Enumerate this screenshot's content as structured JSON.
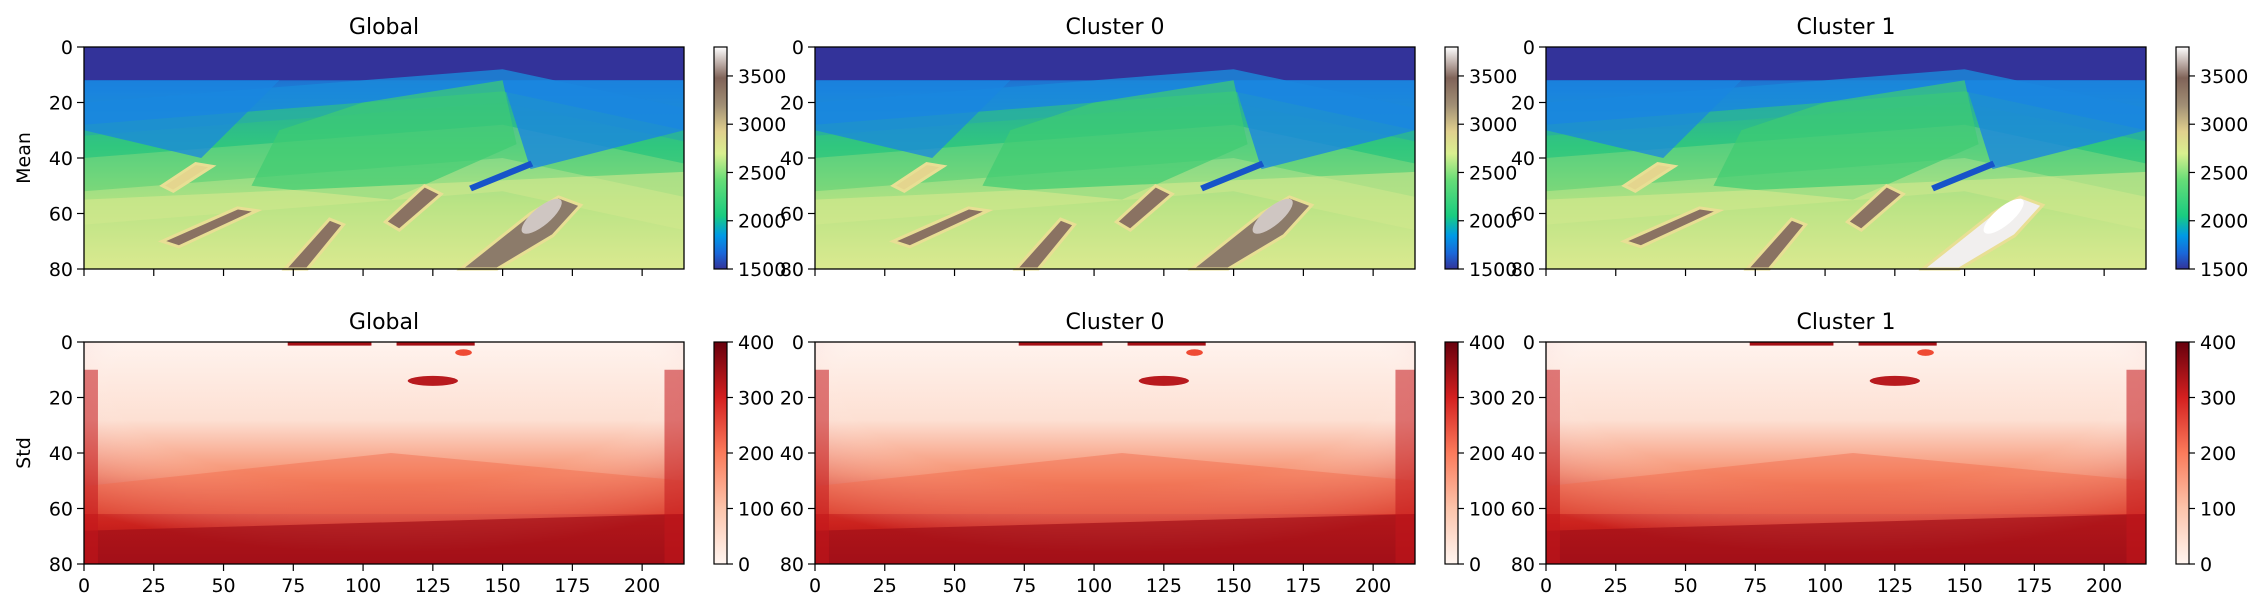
{
  "figure": {
    "row_labels": [
      "Mean",
      "Std"
    ],
    "titles": {
      "top": [
        "Global",
        "Cluster 0",
        "Cluster 1"
      ],
      "bottom": [
        "Global",
        "Cluster 0",
        "Cluster 1"
      ]
    }
  },
  "chart_data": [
    {
      "type": "heatmap",
      "title": "Global",
      "ylabel": "Mean",
      "xlim": [
        0,
        215
      ],
      "ylim": [
        80,
        0
      ],
      "colormap": "terrain",
      "colorbar": {
        "range": [
          1500,
          3800
        ],
        "ticks": [
          1500,
          2000,
          2500,
          3000,
          3500
        ]
      },
      "description_values": "seismic velocity model mean, low ~1500 in top water layer, layered ~2000-2800, high-velocity bodies up to ~3600"
    },
    {
      "type": "heatmap",
      "title": "Cluster 0",
      "xlim": [
        0,
        215
      ],
      "ylim": [
        80,
        0
      ],
      "colormap": "terrain",
      "colorbar": {
        "range": [
          1500,
          3800
        ],
        "ticks": [
          1500,
          2000,
          2500,
          3000,
          3500
        ]
      }
    },
    {
      "type": "heatmap",
      "title": "Cluster 1",
      "xlim": [
        0,
        215
      ],
      "ylim": [
        80,
        0
      ],
      "colormap": "terrain",
      "colorbar": {
        "range": [
          1500,
          3800
        ],
        "ticks": [
          1500,
          2000,
          2500,
          3000,
          3500
        ]
      }
    },
    {
      "type": "heatmap",
      "title": "Global",
      "ylabel": "Std",
      "xlim": [
        0,
        215
      ],
      "ylim": [
        80,
        0
      ],
      "colormap": "Reds",
      "colorbar": {
        "range": [
          0,
          400
        ],
        "ticks": [
          0,
          100,
          200,
          300,
          400
        ]
      }
    },
    {
      "type": "heatmap",
      "title": "Cluster 0",
      "xlim": [
        0,
        215
      ],
      "ylim": [
        80,
        0
      ],
      "colormap": "Reds",
      "colorbar": {
        "range": [
          0,
          400
        ],
        "ticks": [
          0,
          100,
          200,
          300,
          400
        ]
      }
    },
    {
      "type": "heatmap",
      "title": "Cluster 1",
      "xlim": [
        0,
        215
      ],
      "ylim": [
        80,
        0
      ],
      "colormap": "Reds",
      "colorbar": {
        "range": [
          0,
          400
        ],
        "ticks": [
          0,
          100,
          200,
          300,
          400
        ]
      }
    }
  ],
  "axes": {
    "x_ticks": [
      0,
      25,
      50,
      75,
      100,
      125,
      150,
      175,
      200
    ],
    "y_ticks": [
      0,
      20,
      40,
      60,
      80
    ]
  },
  "colors": {
    "water": "#33339a",
    "deep_blue": "#1a7fe0",
    "green": "#43c96a",
    "light_green": "#9fdf86",
    "yellow": "#eee38f",
    "brown": "#8a7560",
    "high": "#f0ecea",
    "std_low": "#fff5f0",
    "std_mid": "#f5866a",
    "std_high": "#67000d"
  }
}
